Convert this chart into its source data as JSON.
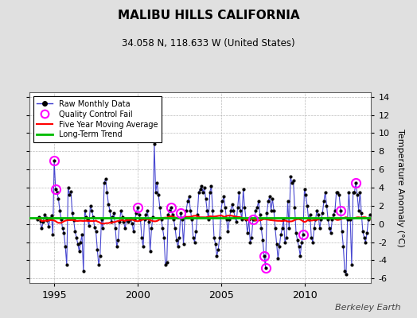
{
  "title": "MALIBU HILLS CALIFORNIA",
  "subtitle": "34.058 N, 118.633 W (United States)",
  "ylabel": "Temperature Anomaly (°C)",
  "attribution": "Berkeley Earth",
  "ylim": [
    -6.5,
    14.5
  ],
  "yticks": [
    -6,
    -4,
    -2,
    0,
    2,
    4,
    6,
    8,
    10,
    12,
    14
  ],
  "xlim": [
    1993.5,
    2014.0
  ],
  "xticks": [
    1995,
    2000,
    2005,
    2010
  ],
  "bg_color": "#e0e0e0",
  "plot_bg_color": "#ffffff",
  "raw_color": "#3333cc",
  "raw_marker_color": "#000000",
  "qc_color": "#ff00ff",
  "moving_avg_color": "#ff0000",
  "trend_color": "#00bb00",
  "trend_value": 0.65,
  "raw_data": [
    0.5,
    0.8,
    0.3,
    -0.5,
    0.2,
    1.0,
    0.7,
    0.4,
    -0.3,
    0.6,
    0.9,
    -1.2,
    7.0,
    3.8,
    3.5,
    2.8,
    1.5,
    0.5,
    -0.5,
    -1.0,
    -2.5,
    -4.5,
    4.0,
    3.2,
    3.6,
    1.2,
    0.4,
    -0.8,
    -1.5,
    -2.2,
    -3.0,
    -2.0,
    -1.2,
    -5.2,
    1.5,
    0.8,
    0.5,
    -0.2,
    2.0,
    1.5,
    0.8,
    -0.4,
    -0.8,
    -2.8,
    -4.5,
    -3.5,
    0.5,
    -0.5,
    4.5,
    5.0,
    3.5,
    2.2,
    1.5,
    0.2,
    0.8,
    1.2,
    -0.5,
    -2.5,
    -1.8,
    0.2,
    1.5,
    0.8,
    0.2,
    -0.5,
    0.5,
    0.2,
    0.4,
    0.6,
    0.1,
    -0.8,
    0.5,
    1.2,
    1.8,
    1.0,
    0.5,
    -1.5,
    -2.5,
    0.5,
    1.0,
    1.5,
    0.2,
    -3.0,
    -0.5,
    0.8,
    8.8,
    3.5,
    4.5,
    3.2,
    1.8,
    0.5,
    -0.5,
    -1.5,
    -4.5,
    -4.2,
    1.0,
    1.5,
    1.8,
    1.0,
    0.5,
    -0.5,
    -1.8,
    -2.5,
    -1.5,
    1.2,
    0.5,
    -2.2,
    0.8,
    1.5,
    2.5,
    3.0,
    1.5,
    0.5,
    -1.5,
    -2.0,
    -0.8,
    1.0,
    3.5,
    3.8,
    4.2,
    3.5,
    4.0,
    2.8,
    1.5,
    0.5,
    3.5,
    4.2,
    1.5,
    -1.5,
    -2.2,
    -3.5,
    -2.8,
    -1.5,
    1.5,
    2.5,
    3.0,
    1.8,
    0.5,
    -0.8,
    0.5,
    1.5,
    2.2,
    1.5,
    0.8,
    0.2,
    1.8,
    3.5,
    1.5,
    0.5,
    3.8,
    1.8,
    0.5,
    -1.0,
    0.5,
    -2.0,
    -1.5,
    0.5,
    0.5,
    1.5,
    1.8,
    2.5,
    1.0,
    -0.5,
    -1.8,
    -3.5,
    -4.8,
    1.2,
    2.5,
    3.0,
    1.5,
    2.8,
    1.5,
    -0.5,
    -2.2,
    -3.8,
    -2.5,
    -1.2,
    -0.5,
    0.5,
    -2.0,
    -1.5,
    2.5,
    -0.5,
    5.2,
    4.5,
    4.8,
    1.8,
    -1.0,
    -1.8,
    -2.5,
    -3.5,
    -2.0,
    -1.2,
    3.8,
    3.2,
    2.0,
    0.5,
    1.0,
    -1.5,
    -2.0,
    -0.5,
    0.5,
    1.5,
    1.0,
    -0.5,
    0.5,
    1.2,
    2.5,
    3.5,
    2.0,
    0.5,
    -0.5,
    -1.0,
    0.5,
    1.0,
    1.5,
    3.5,
    3.5,
    3.2,
    1.5,
    -0.8,
    -2.5,
    -5.2,
    -5.5,
    0.5,
    3.5,
    0.5,
    -4.5,
    3.5,
    3.5,
    4.5,
    3.2,
    1.5,
    3.5,
    1.2,
    -0.8,
    -1.5,
    -2.0,
    -1.0,
    0.5,
    1.0
  ],
  "qc_fail_indices": [
    12,
    13,
    72,
    96,
    103,
    155,
    163,
    164,
    191,
    218,
    229
  ],
  "start_year": 1994.0
}
